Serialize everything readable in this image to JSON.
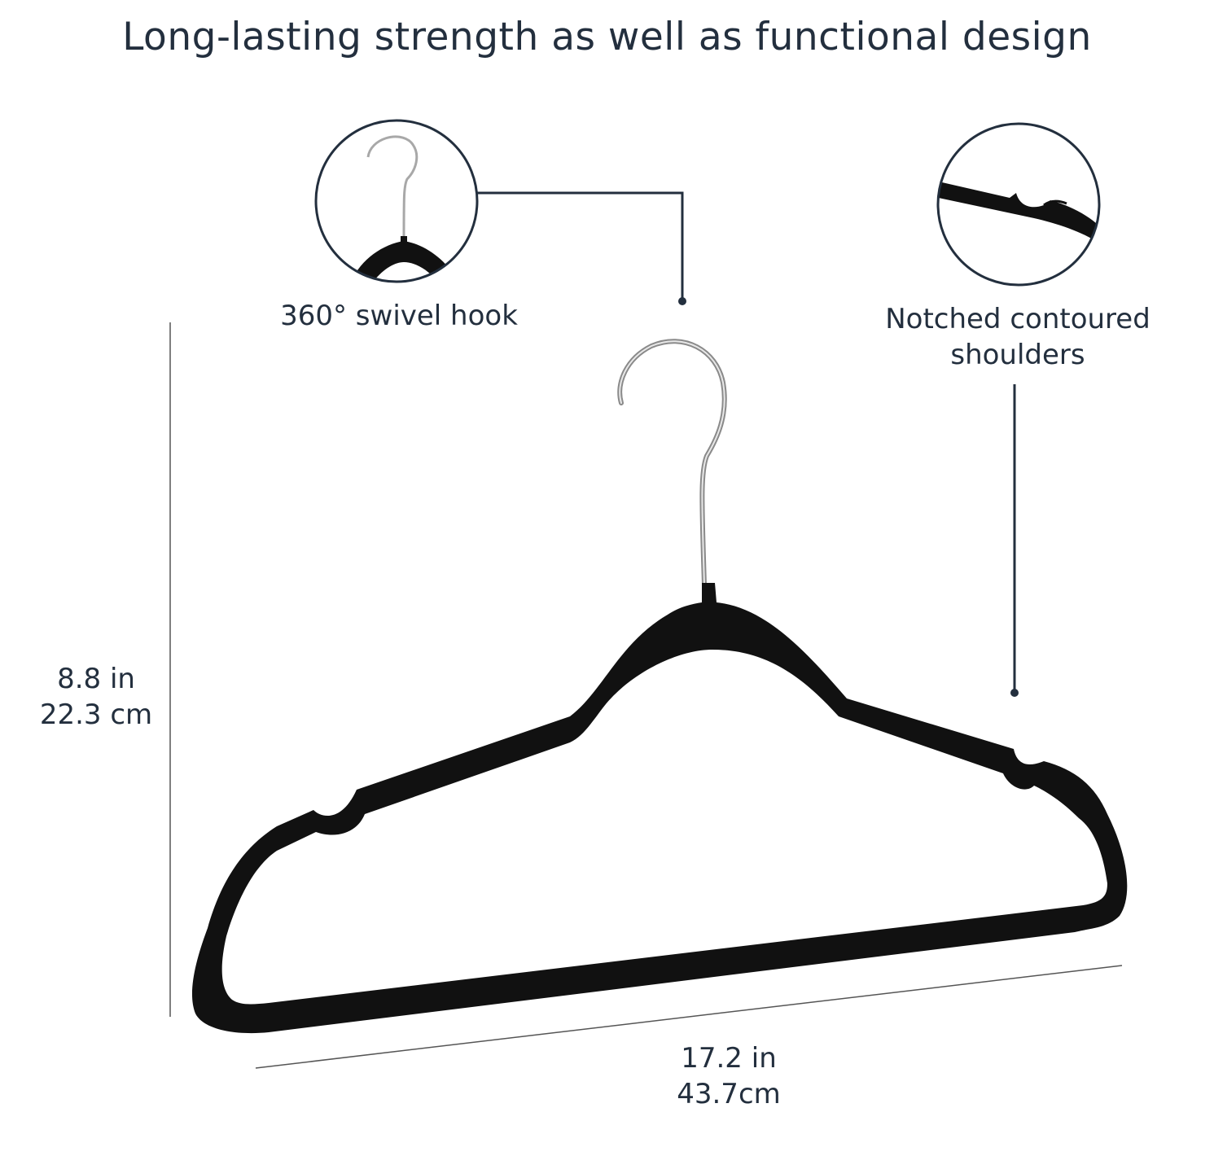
{
  "title": "Long-lasting strength as well as functional design",
  "features": {
    "hook": {
      "label": "360° swivel hook",
      "icon": "swivel-hook-icon"
    },
    "shoulders": {
      "line1": "Notched contoured",
      "line2": "shoulders",
      "icon": "notched-shoulder-icon"
    }
  },
  "dimensions": {
    "height": {
      "imperial": "8.8 in",
      "metric": "22.3 cm"
    },
    "width": {
      "imperial": "17.2 in",
      "metric": "43.7cm"
    }
  },
  "colors": {
    "text": "#232f3e",
    "hanger": "#111111",
    "hook_metal": "#9a9a9a",
    "dimension_line": "#555555"
  }
}
